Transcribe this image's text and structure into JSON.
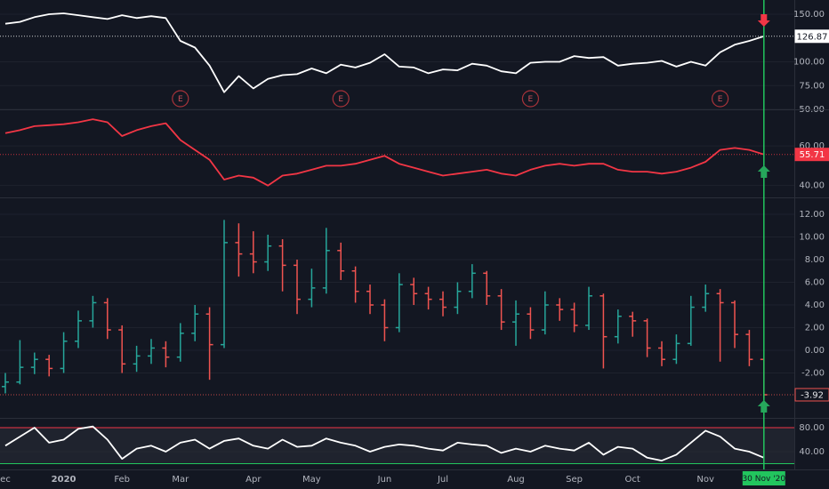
{
  "chart_data": [
    {
      "type": "line",
      "series": [
        {
          "color": "#ffffff",
          "values": [
            140,
            142,
            147,
            150,
            151,
            149,
            147,
            145,
            149,
            146,
            148,
            146,
            122,
            115,
            96,
            68,
            85,
            72,
            82,
            86,
            87,
            93,
            88,
            97,
            94,
            99,
            108,
            95,
            94,
            88,
            92,
            91,
            98,
            96,
            90,
            88,
            99,
            100,
            100,
            106,
            104,
            105,
            96,
            98,
            99,
            101,
            95,
            100,
            96,
            110,
            118,
            122,
            126.87
          ]
        }
      ],
      "ylim": [
        50,
        165
      ],
      "yticks": [
        {
          "value": 50,
          "label": "50.00"
        },
        {
          "value": 75,
          "label": "75.00"
        },
        {
          "value": 100,
          "label": "100.00"
        },
        {
          "value": 150,
          "label": "150.00"
        }
      ],
      "annotations": [
        {
          "label": "E",
          "index": 12
        },
        {
          "label": "E",
          "index": 23
        },
        {
          "label": "E",
          "index": 36
        },
        {
          "label": "E",
          "index": 49
        }
      ]
    },
    {
      "type": "line",
      "series": [
        {
          "color": "#f23645",
          "values": [
            66.5,
            68,
            70,
            70.5,
            71,
            72,
            73.5,
            72,
            65,
            68,
            70,
            71.5,
            63,
            58,
            53,
            43,
            45,
            44,
            40,
            45,
            46,
            48,
            50,
            50,
            51,
            53,
            55,
            51,
            49,
            47,
            45,
            46,
            47,
            48,
            46,
            45,
            48,
            50,
            51,
            50,
            51,
            51,
            48,
            47,
            47,
            46,
            47,
            49,
            52,
            58,
            59,
            58,
            55.71
          ]
        }
      ],
      "ylim": [
        34,
        78.5
      ],
      "yticks": [
        {
          "value": 40,
          "label": "40.00"
        },
        {
          "value": 60,
          "label": "60.00"
        }
      ]
    },
    {
      "type": "ohlc",
      "up_color": "#26a69a",
      "down_color": "#ef5350",
      "open": [
        -3.2,
        -2.8,
        -1.5,
        -0.8,
        -1.6,
        0.8,
        2.6,
        4.2,
        1.8,
        -1.2,
        -0.5,
        0.2,
        -0.6,
        1.5,
        3.2,
        0.5,
        9.5,
        8.5,
        7.8,
        9.2,
        7.5,
        4.5,
        5.5,
        8.8,
        7.0,
        5.2,
        4.0,
        2.0,
        5.8,
        5.0,
        4.5,
        3.8,
        5.2,
        6.8,
        4.8,
        2.5,
        3.2,
        1.8,
        4.0,
        3.6,
        2.2,
        4.8,
        1.2,
        3.0,
        2.6,
        0.2,
        -0.8,
        0.6,
        3.8,
        5.0,
        4.2,
        1.4,
        -0.8
      ],
      "high": [
        -2.0,
        0.9,
        -0.2,
        -0.4,
        1.6,
        3.5,
        4.8,
        4.6,
        2.2,
        0.4,
        1.0,
        0.8,
        2.4,
        4.0,
        3.8,
        11.5,
        11.2,
        10.5,
        10.2,
        9.8,
        8.0,
        7.2,
        10.8,
        9.5,
        7.4,
        5.8,
        4.5,
        6.8,
        6.4,
        5.6,
        5.2,
        6.0,
        7.6,
        7.0,
        5.4,
        4.4,
        3.8,
        5.2,
        4.6,
        4.2,
        5.6,
        5.0,
        3.6,
        3.4,
        2.8,
        0.8,
        1.4,
        4.8,
        5.8,
        5.4,
        4.4,
        1.8,
        -0.8
      ],
      "low": [
        -3.8,
        -3.0,
        -2.1,
        -2.3,
        -2.0,
        0.2,
        2.0,
        1.0,
        -2.0,
        -1.9,
        -1.2,
        -1.5,
        -1.0,
        0.8,
        -2.6,
        0.2,
        6.5,
        6.8,
        7.0,
        5.2,
        3.2,
        3.8,
        5.0,
        6.2,
        4.2,
        3.2,
        0.8,
        1.6,
        4.0,
        3.6,
        3.0,
        3.2,
        4.6,
        4.0,
        1.8,
        0.4,
        1.0,
        1.4,
        2.6,
        1.6,
        1.8,
        -1.6,
        0.6,
        1.2,
        -0.6,
        -1.4,
        -1.2,
        0.4,
        3.4,
        -1.0,
        0.2,
        -1.4,
        -4.2
      ],
      "close": [
        -2.8,
        -1.5,
        -0.8,
        -1.6,
        0.8,
        2.6,
        4.2,
        1.8,
        -1.2,
        -0.5,
        0.2,
        -0.6,
        1.5,
        3.2,
        0.5,
        9.5,
        8.5,
        7.8,
        9.2,
        7.5,
        4.5,
        5.5,
        8.8,
        7.0,
        5.2,
        4.0,
        2.0,
        5.8,
        5.0,
        4.5,
        3.8,
        5.2,
        6.8,
        4.8,
        2.5,
        3.2,
        1.8,
        4.0,
        3.6,
        2.2,
        4.8,
        1.2,
        3.0,
        2.6,
        0.2,
        -0.8,
        0.6,
        3.8,
        5.0,
        4.2,
        1.4,
        -0.8,
        -3.92
      ],
      "ylim": [
        -5.96,
        13.49
      ],
      "yticks": [
        {
          "value": -2,
          "label": "-2.00"
        },
        {
          "value": 0,
          "label": "0.00"
        },
        {
          "value": 2,
          "label": "2.00"
        },
        {
          "value": 4,
          "label": "4.00"
        },
        {
          "value": 6,
          "label": "6.00"
        },
        {
          "value": 8,
          "label": "8.00"
        },
        {
          "value": 10,
          "label": "10.00"
        },
        {
          "value": 12,
          "label": "12.00"
        }
      ]
    },
    {
      "type": "line",
      "series": [
        {
          "color": "#ffffff",
          "values": [
            50,
            65,
            80,
            55,
            60,
            78,
            82,
            60,
            28,
            45,
            50,
            40,
            55,
            60,
            45,
            58,
            62,
            50,
            45,
            60,
            48,
            50,
            62,
            55,
            50,
            40,
            48,
            52,
            50,
            45,
            42,
            55,
            52,
            50,
            38,
            45,
            40,
            50,
            45,
            42,
            55,
            35,
            48,
            45,
            30,
            25,
            35,
            55,
            75,
            65,
            45,
            40,
            30
          ]
        }
      ],
      "bands": [
        {
          "value": 20,
          "color": "#22c55e"
        },
        {
          "value": 80,
          "color": "#f23645"
        }
      ],
      "ylim": [
        10.4,
        96.3
      ],
      "yticks": [
        {
          "value": 40,
          "label": "40.00"
        },
        {
          "value": 80,
          "label": "80.00"
        }
      ],
      "categories": [
        "ec",
        null,
        null,
        null,
        "2020",
        null,
        null,
        null,
        "Feb",
        null,
        null,
        null,
        "Mar",
        null,
        null,
        null,
        null,
        "Apr",
        null,
        null,
        null,
        "May",
        null,
        null,
        null,
        null,
        "Jun",
        null,
        null,
        null,
        "Jul",
        null,
        null,
        null,
        null,
        "Aug",
        null,
        null,
        null,
        "Sep",
        null,
        null,
        null,
        "Oct",
        null,
        null,
        null,
        null,
        "Nov",
        null,
        null,
        null,
        "30 Nov '20"
      ]
    }
  ]
}
